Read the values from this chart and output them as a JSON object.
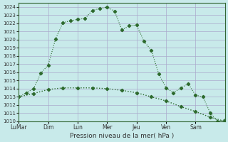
{
  "title": "",
  "xlabel": "Pression niveau de la mer( hPa )",
  "ylabel": "",
  "background_color": "#c8eaea",
  "grid_color": "#aaaacc",
  "line_color": "#2d6a2d",
  "ylim": [
    1010,
    1024.5
  ],
  "yticks": [
    1010,
    1011,
    1012,
    1013,
    1014,
    1015,
    1016,
    1017,
    1018,
    1019,
    1020,
    1021,
    1022,
    1023,
    1024
  ],
  "xtick_labels": [
    "LuMar",
    "Dim",
    "Lun",
    "Mer",
    "Jeu",
    "Ven",
    "Sam"
  ],
  "xtick_positions": [
    0,
    4,
    8,
    12,
    16,
    20,
    24
  ],
  "xlim": [
    0,
    28
  ],
  "series1_x": [
    0,
    1,
    2,
    3,
    4,
    5,
    6,
    7,
    8,
    9,
    10,
    11,
    12,
    13,
    14,
    15,
    16,
    17,
    18,
    19,
    20,
    21,
    22,
    23,
    24,
    25,
    26,
    27,
    28
  ],
  "series1_y": [
    1013.0,
    1013.5,
    1014.0,
    1015.9,
    1016.9,
    1020.1,
    1022.1,
    1022.3,
    1022.5,
    1022.6,
    1023.6,
    1023.8,
    1024.0,
    1023.5,
    1021.2,
    1021.7,
    1021.8,
    1019.8,
    1018.7,
    1015.8,
    1014.1,
    1013.5,
    1014.1,
    1014.6,
    1013.2,
    1013.0,
    1011.0,
    1010.0,
    1010.2
  ],
  "series2_x": [
    0,
    2,
    4,
    6,
    8,
    10,
    12,
    14,
    16,
    18,
    20,
    22,
    24,
    26,
    28
  ],
  "series2_y": [
    1013.0,
    1013.4,
    1013.9,
    1014.1,
    1014.1,
    1014.1,
    1014.0,
    1013.8,
    1013.5,
    1013.0,
    1012.5,
    1011.8,
    1011.2,
    1010.5,
    1010.0
  ]
}
